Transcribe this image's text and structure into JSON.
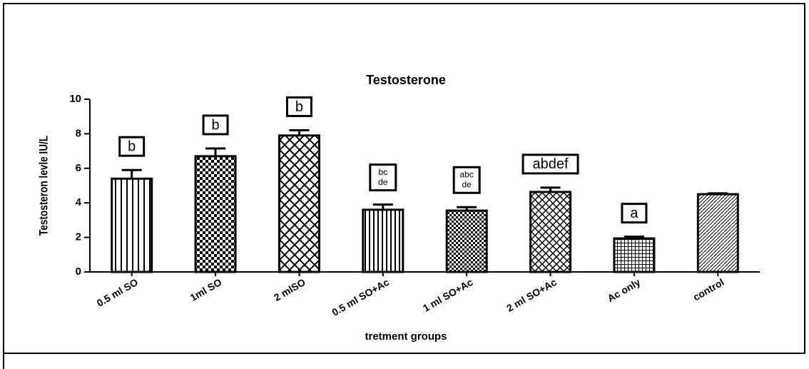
{
  "chart_data": {
    "type": "bar",
    "title": "Testosterone",
    "x_label": "tretment groups",
    "y_label": "Testosteron levle IU/L",
    "categories": [
      "0.5 ml SO",
      "1ml SO",
      "2 mlSO",
      "0.5 ml SO+Ac",
      "1 ml SO+Ac",
      "2 ml SO+Ac",
      "Ac only",
      "control"
    ],
    "values": [
      5.4,
      6.7,
      7.9,
      3.6,
      3.55,
      4.63,
      1.94,
      4.5
    ],
    "errors": [
      0.5,
      0.45,
      0.3,
      0.3,
      0.2,
      0.25,
      0.1,
      0.05
    ],
    "annotations": [
      [
        "b"
      ],
      [
        "b"
      ],
      [
        "b"
      ],
      [
        "bc",
        "de"
      ],
      [
        "abc",
        "de"
      ],
      [
        "abdef"
      ],
      [
        "a"
      ],
      null
    ],
    "color": "#000000",
    "ylim": [
      0,
      10
    ],
    "yticks": [
      0,
      2,
      4,
      6,
      8,
      10
    ],
    "grid": false
  }
}
